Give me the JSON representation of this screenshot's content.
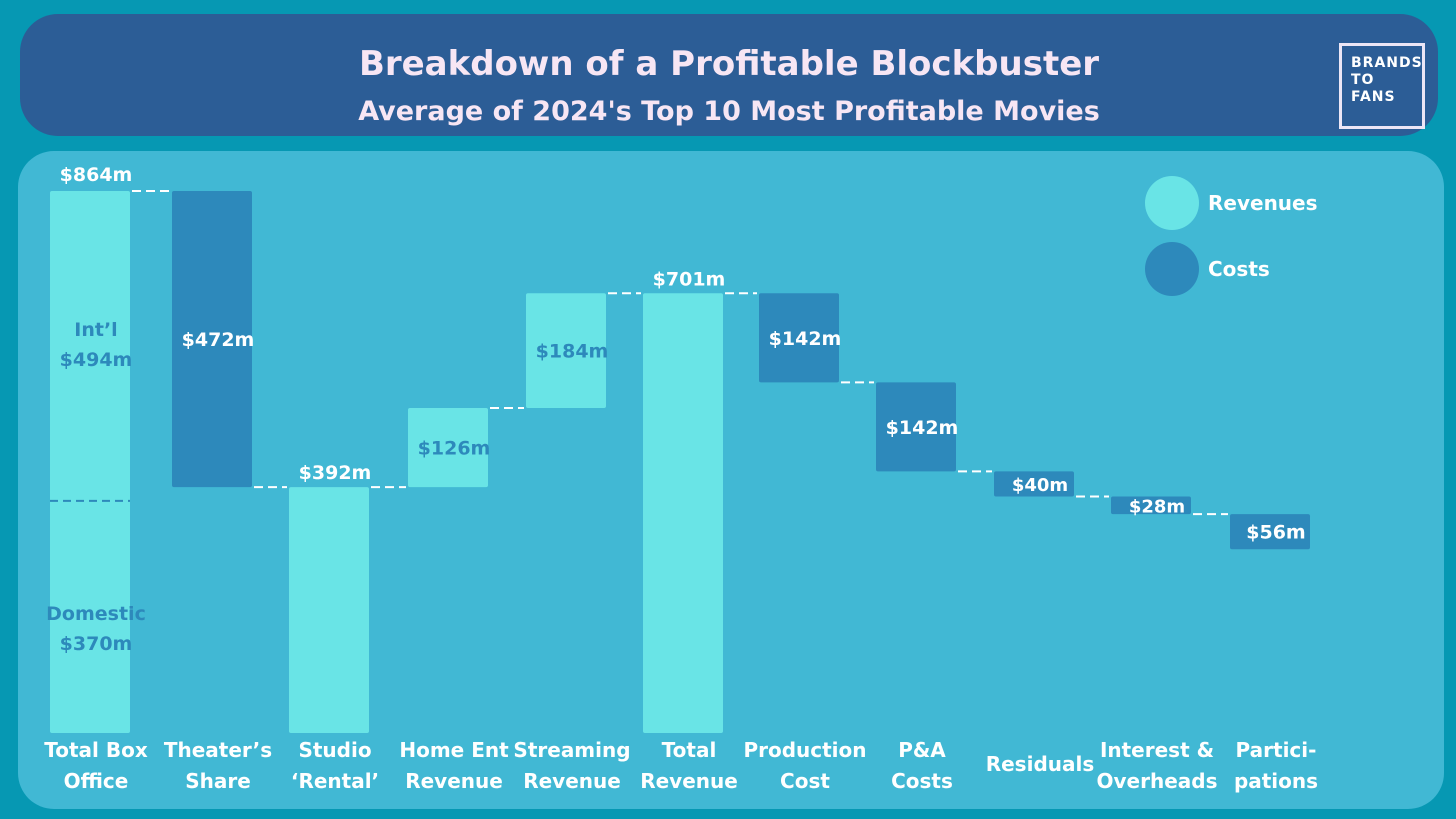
{
  "header": {
    "title": "Breakdown of a Profitable Blockbuster",
    "subtitle": "Average of 2024's Top 10 Most Profitable Movies",
    "logo_lines": [
      "BRANDS",
      "TO",
      "FANS"
    ]
  },
  "legend": [
    {
      "name": "Revenues",
      "color": "#69e4e6"
    },
    {
      "name": "Costs",
      "color": "#2d89bb"
    }
  ],
  "colors": {
    "revenue": "#69e4e6",
    "cost": "#2d89bb",
    "inside_label_on_light": "#2d89bb",
    "label": "#ffffff"
  },
  "chart_data": {
    "type": "bar",
    "subtype": "waterfall",
    "title": "Breakdown of a Profitable Blockbuster",
    "subtitle": "Average of 2024's Top 10 Most Profitable Movies",
    "units": "$m",
    "ylim": [
      0,
      864
    ],
    "grid": false,
    "legend_position": "top-right",
    "categories": [
      [
        "Total Box",
        "Office"
      ],
      [
        "Theater’s",
        "Share"
      ],
      [
        "Studio",
        "‘Rental’"
      ],
      [
        "Home Ent",
        "Revenue"
      ],
      [
        "Streaming",
        "Revenue"
      ],
      [
        "Total",
        "Revenue"
      ],
      [
        "Production",
        "Cost"
      ],
      [
        "P&A",
        "Costs"
      ],
      [
        "Residuals"
      ],
      [
        "Interest &",
        "Overheads"
      ],
      [
        "Partici-",
        "pations"
      ]
    ],
    "bars": [
      {
        "kind": "revenue",
        "start": 0,
        "end": 864,
        "label": "$864m",
        "segments": [
          {
            "name": "Domestic",
            "value": 370,
            "label": "$370m"
          },
          {
            "name": "Int’l",
            "value": 494,
            "label": "$494m"
          }
        ]
      },
      {
        "kind": "cost",
        "start": 864,
        "end": 392,
        "label": "$472m"
      },
      {
        "kind": "revenue",
        "start": 0,
        "end": 392,
        "label": "$392m"
      },
      {
        "kind": "revenue",
        "start": 392,
        "end": 518,
        "label": "$126m"
      },
      {
        "kind": "revenue",
        "start": 518,
        "end": 701,
        "label": "$184m"
      },
      {
        "kind": "revenue",
        "start": 0,
        "end": 701,
        "label": "$701m"
      },
      {
        "kind": "cost",
        "start": 701,
        "end": 559,
        "label": "$142m"
      },
      {
        "kind": "cost",
        "start": 559,
        "end": 417,
        "label": "$142m"
      },
      {
        "kind": "cost",
        "start": 417,
        "end": 377,
        "label": "$40m"
      },
      {
        "kind": "cost",
        "start": 377,
        "end": 349,
        "label": "$28m"
      },
      {
        "kind": "cost",
        "start": 349,
        "end": 293,
        "label": "$56m"
      }
    ]
  }
}
